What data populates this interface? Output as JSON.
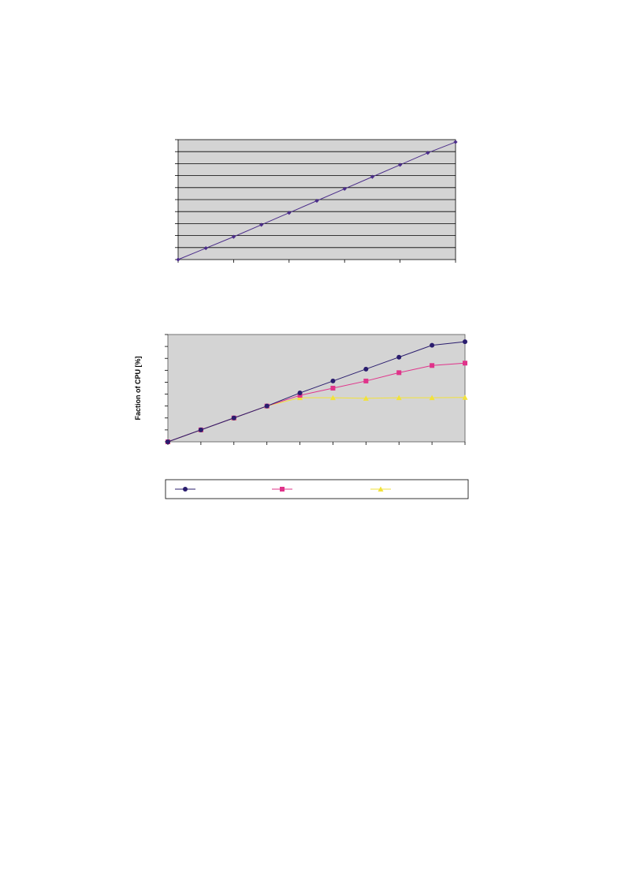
{
  "chart_data": [
    {
      "type": "line",
      "title": "",
      "xlabel": "",
      "ylabel": "",
      "x": [
        0,
        1,
        2,
        3,
        4,
        5,
        6,
        7,
        8,
        9,
        10
      ],
      "xlim": [
        0,
        10
      ],
      "ylim": [
        0,
        10
      ],
      "grid": true,
      "series": [
        {
          "values": [
            0,
            0.95,
            1.9,
            2.9,
            3.9,
            4.9,
            5.9,
            6.9,
            7.9,
            8.9,
            9.8
          ],
          "color": "#4b2d8a",
          "marker": "diamond"
        }
      ]
    },
    {
      "type": "line",
      "title": "",
      "xlabel": "",
      "ylabel": "Faction of CPU [%]",
      "x": [
        0,
        1,
        2,
        3,
        4,
        5,
        6,
        7,
        8,
        9
      ],
      "xlim": [
        0,
        9
      ],
      "ylim": [
        0,
        9
      ],
      "grid": false,
      "legend_position": "bottom",
      "series": [
        {
          "values": [
            0,
            1,
            2,
            3,
            4.1,
            5.1,
            6.1,
            7.1,
            8.1,
            8.4
          ],
          "color": "#2a1d6e",
          "marker": "circle"
        },
        {
          "values": [
            0,
            1,
            2,
            3,
            3.9,
            4.5,
            5.1,
            5.8,
            6.4,
            6.6
          ],
          "color": "#e0338a",
          "marker": "square"
        },
        {
          "values": [
            0,
            1,
            2,
            3,
            3.7,
            3.7,
            3.65,
            3.7,
            3.7,
            3.72
          ],
          "color": "#f2e23a",
          "marker": "triangle"
        }
      ]
    }
  ]
}
